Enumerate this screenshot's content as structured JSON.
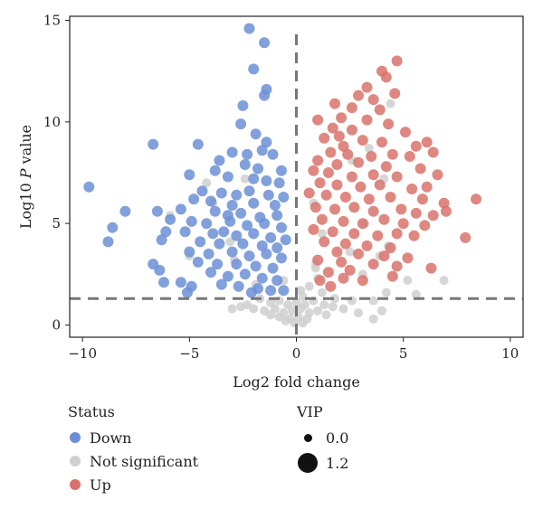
{
  "chart_data": {
    "type": "scatter",
    "title": "",
    "xlabel": "Log2 fold change",
    "ylabel_prefix": "Log10 ",
    "ylabel_italic": "P",
    "ylabel_suffix": " value",
    "xlim": [
      -10.6,
      10.6
    ],
    "ylim": [
      -0.6,
      15.2
    ],
    "x_ticks": [
      -10,
      -5,
      0,
      5,
      10
    ],
    "x_tick_labels": [
      "−10",
      "−5",
      "0",
      "5",
      "10"
    ],
    "y_ticks": [
      0,
      5,
      10,
      15
    ],
    "y_tick_labels": [
      "0",
      "5",
      "10",
      "15"
    ],
    "threshold_x": 0,
    "threshold_y": 1.3,
    "grid": false,
    "colors": {
      "Down": "#6b8fd6",
      "Not significant": "#cfcfcf",
      "Up": "#d9726b"
    },
    "series": [
      {
        "name": "Down",
        "points": [
          [
            -2.2,
            14.6
          ],
          [
            -1.5,
            13.9
          ],
          [
            -2.0,
            12.6
          ],
          [
            -1.4,
            11.6
          ],
          [
            -1.5,
            11.3
          ],
          [
            -2.5,
            10.8
          ],
          [
            -2.6,
            9.9
          ],
          [
            -1.9,
            9.4
          ],
          [
            -1.4,
            9.0
          ],
          [
            -6.7,
            8.9
          ],
          [
            -4.6,
            8.9
          ],
          [
            -3.0,
            8.5
          ],
          [
            -3.6,
            8.1
          ],
          [
            -2.3,
            8.4
          ],
          [
            -1.6,
            8.6
          ],
          [
            -1.1,
            8.4
          ],
          [
            -3.8,
            7.6
          ],
          [
            -2.4,
            7.9
          ],
          [
            -1.8,
            7.7
          ],
          [
            -0.7,
            7.6
          ],
          [
            -5.0,
            7.4
          ],
          [
            -3.2,
            7.3
          ],
          [
            -2.0,
            7.2
          ],
          [
            -1.4,
            7.1
          ],
          [
            -0.8,
            7.0
          ],
          [
            -9.7,
            6.8
          ],
          [
            -4.4,
            6.6
          ],
          [
            -3.5,
            6.5
          ],
          [
            -2.8,
            6.4
          ],
          [
            -2.2,
            6.6
          ],
          [
            -1.3,
            6.4
          ],
          [
            -0.6,
            6.3
          ],
          [
            -4.8,
            6.2
          ],
          [
            -4.0,
            6.1
          ],
          [
            -3.0,
            5.9
          ],
          [
            -2.0,
            6.0
          ],
          [
            -1.0,
            5.9
          ],
          [
            -6.5,
            5.6
          ],
          [
            -5.4,
            5.7
          ],
          [
            -3.8,
            5.6
          ],
          [
            -3.2,
            5.4
          ],
          [
            -2.6,
            5.5
          ],
          [
            -1.7,
            5.3
          ],
          [
            -0.9,
            5.4
          ],
          [
            -8.0,
            5.6
          ],
          [
            -5.9,
            5.2
          ],
          [
            -4.9,
            5.1
          ],
          [
            -4.2,
            5.0
          ],
          [
            -3.1,
            5.1
          ],
          [
            -2.3,
            4.9
          ],
          [
            -1.5,
            5.0
          ],
          [
            -0.7,
            4.8
          ],
          [
            -8.6,
            4.8
          ],
          [
            -6.1,
            4.6
          ],
          [
            -5.2,
            4.6
          ],
          [
            -3.9,
            4.5
          ],
          [
            -3.4,
            4.6
          ],
          [
            -2.8,
            4.4
          ],
          [
            -2.0,
            4.5
          ],
          [
            -1.2,
            4.3
          ],
          [
            -0.5,
            4.2
          ],
          [
            -8.8,
            4.1
          ],
          [
            -6.3,
            4.2
          ],
          [
            -4.5,
            4.1
          ],
          [
            -3.6,
            4.0
          ],
          [
            -2.5,
            4.0
          ],
          [
            -1.6,
            3.9
          ],
          [
            -0.9,
            3.8
          ],
          [
            -5.0,
            3.6
          ],
          [
            -4.1,
            3.5
          ],
          [
            -3.0,
            3.6
          ],
          [
            -2.2,
            3.4
          ],
          [
            -1.4,
            3.5
          ],
          [
            -0.7,
            3.3
          ],
          [
            -6.7,
            3.0
          ],
          [
            -4.6,
            3.1
          ],
          [
            -3.7,
            3.0
          ],
          [
            -2.8,
            3.0
          ],
          [
            -1.9,
            2.9
          ],
          [
            -1.1,
            2.8
          ],
          [
            -6.4,
            2.7
          ],
          [
            -4.0,
            2.6
          ],
          [
            -3.2,
            2.4
          ],
          [
            -2.4,
            2.5
          ],
          [
            -1.6,
            2.3
          ],
          [
            -0.9,
            2.2
          ],
          [
            -6.2,
            2.1
          ],
          [
            -5.4,
            2.1
          ],
          [
            -4.9,
            1.9
          ],
          [
            -3.5,
            2.0
          ],
          [
            -2.7,
            1.9
          ],
          [
            -1.8,
            1.8
          ],
          [
            -1.2,
            1.7
          ],
          [
            -5.1,
            1.6
          ],
          [
            -2.1,
            1.6
          ],
          [
            -0.6,
            1.7
          ]
        ]
      },
      {
        "name": "Not significant",
        "points": [
          [
            -5.9,
            5.4
          ],
          [
            -3.1,
            4.1
          ],
          [
            -2.4,
            7.2
          ],
          [
            -3.9,
            6.0
          ],
          [
            -4.2,
            7.0
          ],
          [
            -5.0,
            3.4
          ],
          [
            -2.9,
            3.2
          ],
          [
            1.2,
            4.5
          ],
          [
            0.8,
            6.0
          ],
          [
            3.2,
            5.0
          ],
          [
            2.5,
            3.6
          ],
          [
            3.9,
            3.4
          ],
          [
            4.3,
            3.9
          ],
          [
            4.4,
            10.9
          ],
          [
            4.1,
            7.2
          ],
          [
            3.4,
            8.7
          ],
          [
            2.6,
            8.1
          ],
          [
            0.6,
            1.9
          ],
          [
            0.3,
            1.4
          ],
          [
            1.2,
            1.6
          ],
          [
            1.0,
            2.3
          ],
          [
            0.9,
            3.0
          ],
          [
            3.1,
            2.5
          ],
          [
            5.2,
            2.2
          ],
          [
            5.6,
            1.5
          ],
          [
            6.9,
            2.2
          ],
          [
            4.2,
            1.6
          ],
          [
            3.6,
            1.2
          ],
          [
            2.6,
            1.2
          ],
          [
            1.8,
            1.3
          ],
          [
            -1.7,
            1.3
          ],
          [
            -1.2,
            1.1
          ],
          [
            -0.8,
            1.2
          ],
          [
            -0.4,
            1.0
          ],
          [
            0.0,
            1.1
          ],
          [
            0.4,
            1.0
          ],
          [
            0.8,
            1.2
          ],
          [
            1.3,
            1.0
          ],
          [
            -2.3,
            1.0
          ],
          [
            -2.0,
            0.8
          ],
          [
            -1.5,
            0.7
          ],
          [
            -1.0,
            0.8
          ],
          [
            -0.6,
            0.6
          ],
          [
            -0.2,
            0.7
          ],
          [
            0.2,
            0.8
          ],
          [
            0.6,
            0.6
          ],
          [
            1.0,
            0.7
          ],
          [
            1.7,
            0.9
          ],
          [
            2.2,
            0.8
          ],
          [
            -0.8,
            0.4
          ],
          [
            -0.3,
            0.3
          ],
          [
            0.1,
            0.4
          ],
          [
            0.5,
            0.3
          ],
          [
            -0.1,
            0.1
          ],
          [
            0.3,
            0.1
          ],
          [
            -0.5,
            0.2
          ],
          [
            -1.2,
            0.5
          ],
          [
            1.4,
            0.5
          ],
          [
            3.6,
            0.3
          ],
          [
            4.0,
            0.7
          ],
          [
            2.9,
            0.6
          ],
          [
            -2.6,
            0.9
          ],
          [
            -3.0,
            0.8
          ],
          [
            -1.9,
            2.0
          ],
          [
            -0.6,
            2.2
          ],
          [
            0.9,
            2.8
          ],
          [
            0.2,
            1.7
          ]
        ]
      },
      {
        "name": "Up",
        "points": [
          [
            4.7,
            13.0
          ],
          [
            4.0,
            12.5
          ],
          [
            4.2,
            12.2
          ],
          [
            3.3,
            11.7
          ],
          [
            2.9,
            11.3
          ],
          [
            3.6,
            11.1
          ],
          [
            4.6,
            11.4
          ],
          [
            1.8,
            10.9
          ],
          [
            2.6,
            10.7
          ],
          [
            3.9,
            10.6
          ],
          [
            3.3,
            10.1
          ],
          [
            2.1,
            10.2
          ],
          [
            1.0,
            10.1
          ],
          [
            1.7,
            9.7
          ],
          [
            2.6,
            9.6
          ],
          [
            4.3,
            9.9
          ],
          [
            5.1,
            9.5
          ],
          [
            1.3,
            9.2
          ],
          [
            2.0,
            9.3
          ],
          [
            3.1,
            9.1
          ],
          [
            4.0,
            9.0
          ],
          [
            2.2,
            8.8
          ],
          [
            5.6,
            8.8
          ],
          [
            6.1,
            9.0
          ],
          [
            1.6,
            8.5
          ],
          [
            2.4,
            8.4
          ],
          [
            3.5,
            8.3
          ],
          [
            4.5,
            8.4
          ],
          [
            5.3,
            8.3
          ],
          [
            6.4,
            8.5
          ],
          [
            1.0,
            8.1
          ],
          [
            1.9,
            7.9
          ],
          [
            2.9,
            8.0
          ],
          [
            4.2,
            7.8
          ],
          [
            5.8,
            7.7
          ],
          [
            0.8,
            7.6
          ],
          [
            1.5,
            7.5
          ],
          [
            2.6,
            7.3
          ],
          [
            3.6,
            7.4
          ],
          [
            4.7,
            7.3
          ],
          [
            6.6,
            7.4
          ],
          [
            1.1,
            7.0
          ],
          [
            1.9,
            6.9
          ],
          [
            3.0,
            6.8
          ],
          [
            3.9,
            6.9
          ],
          [
            5.4,
            6.7
          ],
          [
            6.1,
            6.8
          ],
          [
            0.6,
            6.5
          ],
          [
            1.4,
            6.4
          ],
          [
            2.3,
            6.3
          ],
          [
            3.4,
            6.2
          ],
          [
            4.4,
            6.3
          ],
          [
            5.9,
            6.2
          ],
          [
            6.9,
            6.0
          ],
          [
            8.4,
            6.2
          ],
          [
            0.9,
            5.8
          ],
          [
            1.8,
            5.7
          ],
          [
            2.7,
            5.8
          ],
          [
            3.6,
            5.6
          ],
          [
            4.9,
            5.7
          ],
          [
            5.6,
            5.5
          ],
          [
            6.4,
            5.4
          ],
          [
            7.0,
            5.6
          ],
          [
            1.2,
            5.2
          ],
          [
            2.2,
            5.1
          ],
          [
            3.1,
            5.0
          ],
          [
            4.1,
            5.2
          ],
          [
            5.0,
            5.0
          ],
          [
            6.0,
            4.9
          ],
          [
            0.8,
            4.7
          ],
          [
            1.7,
            4.6
          ],
          [
            2.7,
            4.5
          ],
          [
            3.8,
            4.4
          ],
          [
            4.7,
            4.5
          ],
          [
            5.5,
            4.4
          ],
          [
            7.9,
            4.3
          ],
          [
            1.3,
            4.1
          ],
          [
            2.3,
            4.0
          ],
          [
            3.3,
            3.9
          ],
          [
            4.4,
            3.8
          ],
          [
            1.9,
            3.6
          ],
          [
            2.9,
            3.5
          ],
          [
            4.1,
            3.4
          ],
          [
            5.2,
            3.3
          ],
          [
            1.0,
            3.2
          ],
          [
            2.1,
            3.1
          ],
          [
            3.6,
            3.0
          ],
          [
            4.7,
            2.9
          ],
          [
            2.5,
            2.7
          ],
          [
            1.5,
            2.6
          ],
          [
            6.3,
            2.8
          ],
          [
            2.2,
            2.3
          ],
          [
            3.1,
            2.2
          ],
          [
            1.1,
            2.2
          ],
          [
            4.5,
            2.4
          ],
          [
            1.6,
            1.9
          ]
        ]
      }
    ]
  },
  "legend": {
    "status_title": "Status",
    "status_items": [
      {
        "label": "Down",
        "color": "#6b8fd6"
      },
      {
        "label": "Not significant",
        "color": "#cfcfcf"
      },
      {
        "label": "Up",
        "color": "#d9726b"
      }
    ],
    "vip_title": "VIP",
    "vip_items": [
      {
        "label": "0.0",
        "value": 0.0
      },
      {
        "label": "1.2",
        "value": 1.2
      }
    ]
  }
}
